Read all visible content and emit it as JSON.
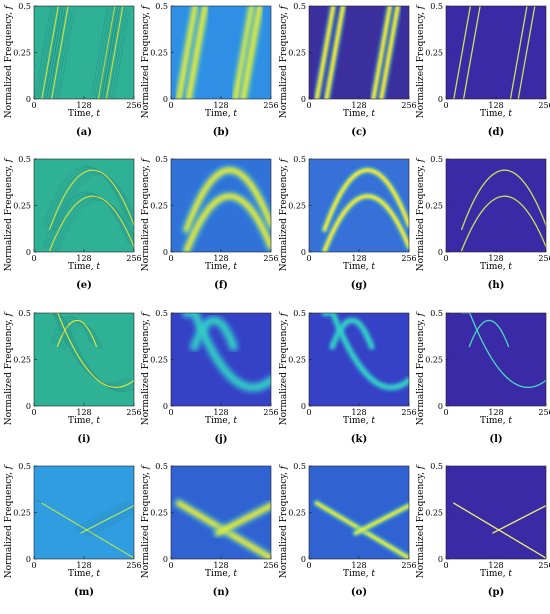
{
  "axis_labels": {
    "ylabel": "Normalized Frequency, ",
    "ylabel_var": "f",
    "xlabel": "Time, ",
    "xlabel_var": "t"
  },
  "chart_data": {
    "type": "heatmap",
    "layout": "4x4 grid of time-frequency representations",
    "x_ticks": [
      "0",
      "128",
      "256"
    ],
    "y_ticks": [
      "0",
      "0.25",
      "0.5"
    ],
    "xlim": [
      0,
      256
    ],
    "ylim": [
      0,
      0.5
    ],
    "panels": [
      {
        "label": "(a)",
        "bg": "#2fb196",
        "ridge": "#d8dc3a",
        "signal": "sawtooth-chirps",
        "style": "interference"
      },
      {
        "label": "(b)",
        "bg": "#2e8fe4",
        "ridge": "#f0f030",
        "signal": "sawtooth-chirps",
        "style": "blurred"
      },
      {
        "label": "(c)",
        "bg": "#3b2f9e",
        "ridge": "#f6ed36",
        "signal": "sawtooth-chirps",
        "style": "smooth"
      },
      {
        "label": "(d)",
        "bg": "#3a2aa6",
        "ridge": "#c7e15a",
        "signal": "sawtooth-chirps",
        "style": "sharp"
      },
      {
        "label": "(e)",
        "bg": "#2fb196",
        "ridge": "#d8dc3a",
        "signal": "two-arches",
        "style": "interference"
      },
      {
        "label": "(f)",
        "bg": "#3072d8",
        "ridge": "#f0f030",
        "signal": "two-arches",
        "style": "blurred"
      },
      {
        "label": "(g)",
        "bg": "#3770d6",
        "ridge": "#f6ed36",
        "signal": "two-arches",
        "style": "smooth"
      },
      {
        "label": "(h)",
        "bg": "#3a2aa6",
        "ridge": "#c7e15a",
        "signal": "two-arches",
        "style": "sharp"
      },
      {
        "label": "(i)",
        "bg": "#2fb196",
        "ridge": "#e6e632",
        "signal": "arch-and-curve",
        "style": "interference"
      },
      {
        "label": "(j)",
        "bg": "#3642c6",
        "ridge": "#30d2c0",
        "signal": "arch-and-curve",
        "style": "blurred"
      },
      {
        "label": "(k)",
        "bg": "#3642c6",
        "ridge": "#30d2c0",
        "signal": "arch-and-curve",
        "style": "smooth"
      },
      {
        "label": "(l)",
        "bg": "#3a2aa6",
        "ridge": "#4ad8c2",
        "signal": "arch-and-curve",
        "style": "sharp"
      },
      {
        "label": "(m)",
        "bg": "#2f9de0",
        "ridge": "#b8e850",
        "signal": "crossing-chirps",
        "style": "interference"
      },
      {
        "label": "(n)",
        "bg": "#3162d2",
        "ridge": "#f0f030",
        "signal": "crossing-chirps",
        "style": "blurred"
      },
      {
        "label": "(o)",
        "bg": "#3162d2",
        "ridge": "#e0ee40",
        "signal": "crossing-chirps",
        "style": "smooth"
      },
      {
        "label": "(p)",
        "bg": "#3a2aa6",
        "ridge": "#f0f070",
        "signal": "crossing-chirps",
        "style": "sharp"
      }
    ]
  }
}
